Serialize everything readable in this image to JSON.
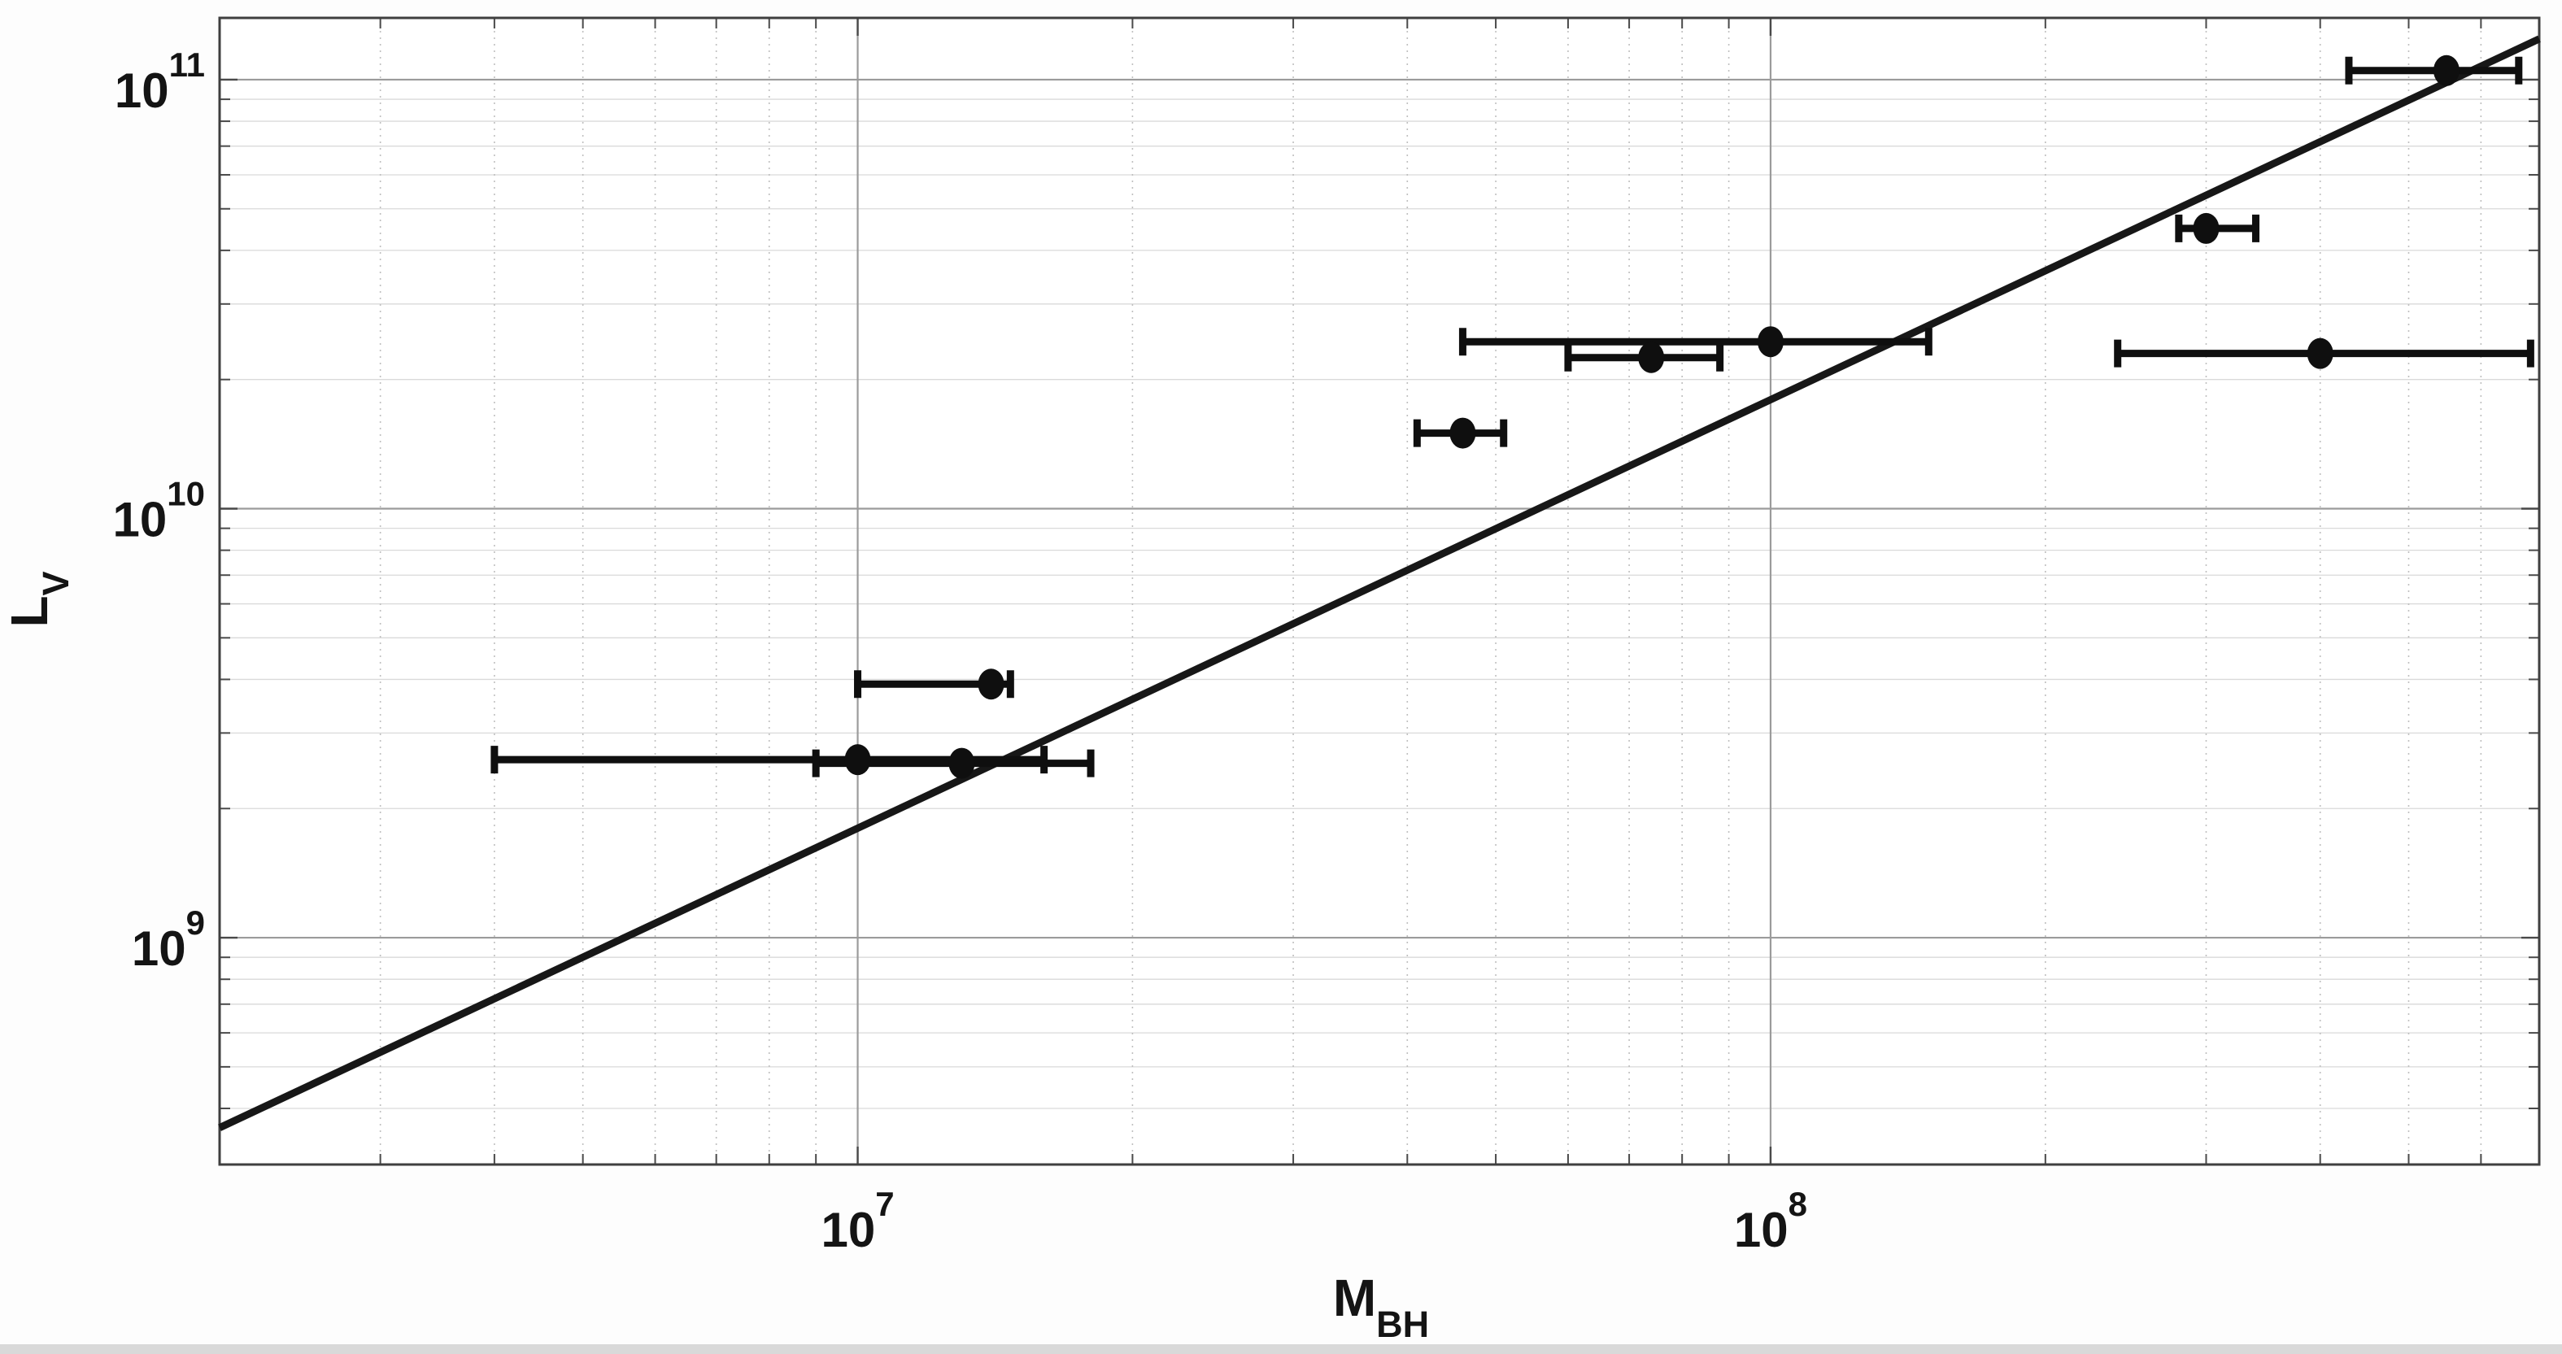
{
  "page": {
    "background": "#fdfdfd",
    "bottom_strip_color": "#d9d9d9"
  },
  "chart_data": {
    "type": "scatter",
    "title": "",
    "xlabel": {
      "main": "M",
      "sub": "BH"
    },
    "ylabel": {
      "main": "L",
      "sub": "V"
    },
    "x_scale": "log",
    "y_scale": "log",
    "xlim": [
      2000000,
      695000000
    ],
    "ylim": [
      296000000,
      139300000000
    ],
    "grid": {
      "major_color": "#9b9b9b",
      "minor_y_color": "#dadada",
      "minor_x_color": "#bfbfbf",
      "frame_color": "#3f3f3f",
      "tick_color": "#4a4a4a"
    },
    "x_major_ticks": [
      {
        "value": 10000000,
        "base": "10",
        "exp": "7"
      },
      {
        "value": 100000000,
        "base": "10",
        "exp": "8"
      }
    ],
    "y_major_ticks": [
      {
        "value": 1000000000,
        "base": "10",
        "exp": "9"
      },
      {
        "value": 10000000000,
        "base": "10",
        "exp": "10"
      },
      {
        "value": 100000000000,
        "base": "10",
        "exp": "11"
      }
    ],
    "x_minor_ticks": [
      3000000,
      4000000,
      5000000,
      6000000,
      7000000,
      8000000,
      9000000,
      20000000,
      30000000,
      40000000,
      50000000,
      60000000,
      70000000,
      80000000,
      90000000,
      200000000,
      300000000,
      400000000,
      500000000,
      600000000
    ],
    "y_minor_ticks": [
      400000000,
      500000000,
      600000000,
      700000000,
      800000000,
      900000000,
      2000000000,
      3000000000,
      4000000000,
      5000000000,
      6000000000,
      7000000000,
      8000000000,
      9000000000,
      20000000000,
      30000000000,
      40000000000,
      50000000000,
      60000000000,
      70000000000,
      80000000000,
      90000000000
    ],
    "points": [
      {
        "m_bh": 10000000,
        "l_v": 2600000000,
        "m_lo": 4000000,
        "m_hi": 16000000
      },
      {
        "m_bh": 13000000,
        "l_v": 2550000000,
        "m_lo": 9000000,
        "m_hi": 18000000
      },
      {
        "m_bh": 14000000,
        "l_v": 3900000000,
        "m_lo": 10000000,
        "m_hi": 14700000
      },
      {
        "m_bh": 46000000,
        "l_v": 15000000000,
        "m_lo": 41000000,
        "m_hi": 51000000
      },
      {
        "m_bh": 74000000,
        "l_v": 22500000000,
        "m_lo": 60000000,
        "m_hi": 88000000
      },
      {
        "m_bh": 100000000,
        "l_v": 24500000000,
        "m_lo": 46000000,
        "m_hi": 149000000
      },
      {
        "m_bh": 300000000,
        "l_v": 45000000000,
        "m_lo": 280000000,
        "m_hi": 340000000
      },
      {
        "m_bh": 400000000,
        "l_v": 23000000000,
        "m_lo": 240000000,
        "m_hi": 680000000
      },
      {
        "m_bh": 550000000,
        "l_v": 105000000000,
        "m_lo": 430000000,
        "m_hi": 660000000
      }
    ],
    "fit_line": {
      "log_slope": 0.9988,
      "log_intercept": 2.2636
    },
    "marker_color": "#0f0f0f",
    "errorbar_color": "#0f0f0f",
    "line_color": "#171717",
    "legend": null
  }
}
